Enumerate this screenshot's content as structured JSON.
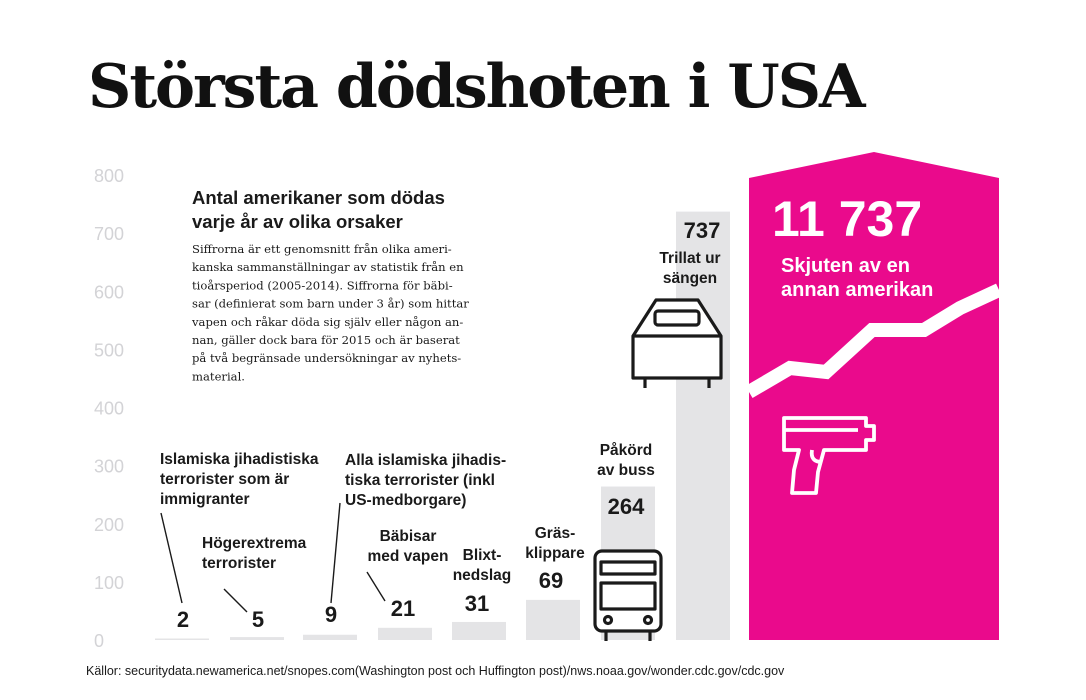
{
  "title": "Största dödshoten i USA",
  "source": "Källor: securitydata.newamerica.net/snopes.com(Washington post och Huffington post)/nws.noaa.gov/wonder.cdc.gov/cdc.gov",
  "colors": {
    "accent": "#ea0a8c",
    "bar": "#e4e4e6",
    "axis_text": "#d3d3d6",
    "text": "#1a1a1a"
  },
  "chart_data": {
    "type": "bar",
    "title": "Största dödshoten i USA",
    "subtitle": [
      "Antal amerikaner som dödas",
      "varje år av olika orsaker"
    ],
    "note": [
      "Siffrorna är ett genomsnitt från olika ameri-",
      "kanska sammanställningar av statistik från en",
      "tioårsperiod (2005-2014). Siffrorna för bäbi-",
      "sar (definierat som barn under 3 år) som hittar",
      "vapen och råkar döda sig själv eller någon an-",
      "nan, gäller dock bara för 2015 och är baserat",
      "på två begränsade undersökningar av nyhets-",
      "material."
    ],
    "ylim": [
      0,
      800
    ],
    "yticks": [
      "0",
      "100",
      "200",
      "300",
      "400",
      "500",
      "600",
      "700",
      "800"
    ],
    "grid": false,
    "categories": [
      [
        "Islamiska jihadistiska",
        "terrorister som är",
        "immigranter"
      ],
      [
        "Högerextrema",
        "terrorister"
      ],
      [
        "Alla islamiska jihadis-",
        "tiska terrorister (inkl",
        "US-medborgare)"
      ],
      [
        "Bäbisar",
        "med vapen"
      ],
      [
        "Blixt-",
        "nedslag"
      ],
      [
        "Gräs-",
        "klippare"
      ],
      [
        "Påkörd",
        "av buss"
      ],
      [
        "Trillat ur",
        "sängen"
      ],
      [
        "Skjuten av en",
        "annan amerikan"
      ]
    ],
    "values": [
      2,
      5,
      9,
      21,
      31,
      69,
      264,
      737,
      11737
    ],
    "value_labels": [
      "2",
      "5",
      "9",
      "21",
      "31",
      "69",
      "264",
      "737",
      "11 737"
    ],
    "icons": [
      "bus-icon",
      "bed-icon",
      "gun-icon"
    ],
    "highlight_index": 8,
    "highlight_note": "Off-scale bar drawn in accent color with a broken top edge"
  }
}
